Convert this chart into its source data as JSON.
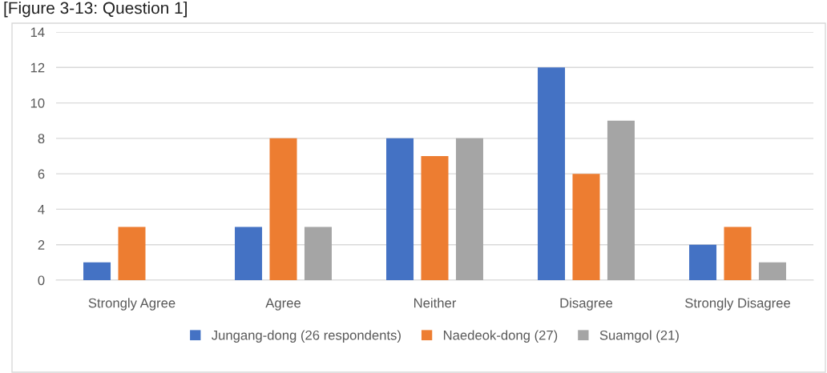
{
  "chart_data": {
    "type": "bar",
    "title": "[Figure 3-13: Question 1]",
    "categories": [
      "Strongly Agree",
      "Agree",
      "Neither",
      "Disagree",
      "Strongly Disagree"
    ],
    "series": [
      {
        "name": "Jungang-dong (26 respondents)",
        "color": "#4472c4",
        "values": [
          1,
          3,
          8,
          12,
          2
        ]
      },
      {
        "name": "Naedeok-dong (27)",
        "color": "#ed7d31",
        "values": [
          3,
          8,
          7,
          6,
          3
        ]
      },
      {
        "name": "Suamgol (21)",
        "color": "#a5a5a5",
        "values": [
          0,
          3,
          8,
          9,
          1
        ]
      }
    ],
    "ylim": [
      0,
      14
    ],
    "yticks": [
      0,
      2,
      4,
      6,
      8,
      10,
      12,
      14
    ],
    "grid": "y",
    "legend": "bottom"
  }
}
